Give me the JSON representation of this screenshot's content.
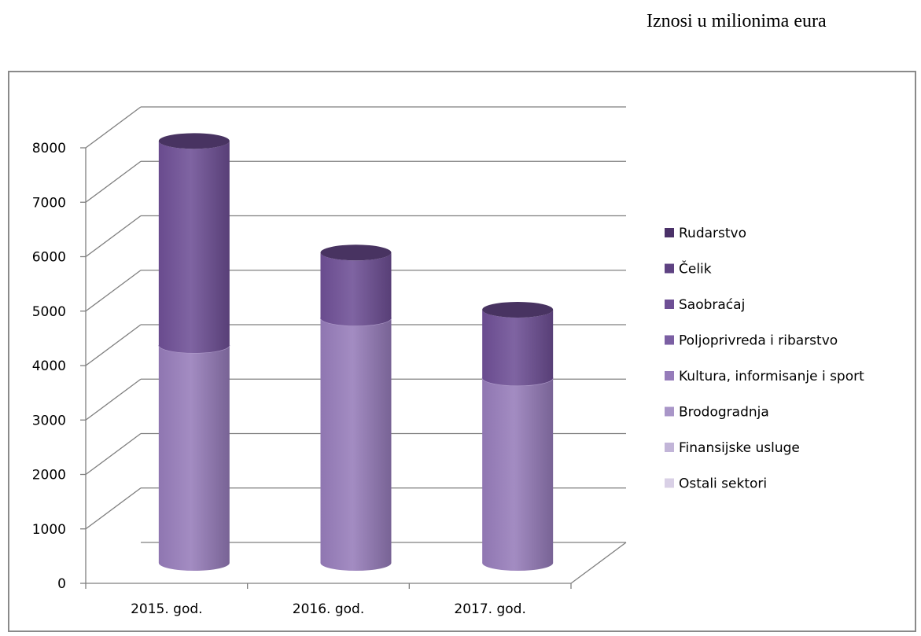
{
  "header": {
    "title": "Iznosi u milionima eura"
  },
  "chart_data": {
    "type": "bar",
    "style": "3d-stacked-cylinder",
    "categories": [
      "2015. god.",
      "2016. god.",
      "2017. god."
    ],
    "series": [
      {
        "name": "Ostali sektori",
        "color": "#d9d0e6",
        "values": [
          0,
          0,
          0
        ]
      },
      {
        "name": "Finansijske usluge",
        "color": "#c2b5d8",
        "values": [
          0,
          0,
          0
        ]
      },
      {
        "name": "Brodogradnja",
        "color": "#a996c8",
        "values": [
          0,
          0,
          0
        ]
      },
      {
        "name": "Kultura, informisanje i sport",
        "color": "#967cba",
        "values": [
          4000,
          4500,
          3400
        ]
      },
      {
        "name": "Poljoprivreda i ribarstvo",
        "color": "#7b5fa3",
        "values": [
          0,
          0,
          0
        ]
      },
      {
        "name": "Saobraćaj",
        "color": "#6e4f95",
        "values": [
          3750,
          1200,
          1250
        ]
      },
      {
        "name": "Čelik",
        "color": "#5e4282",
        "values": [
          0,
          0,
          0
        ]
      },
      {
        "name": "Rudarstvo",
        "color": "#4a3168",
        "values": [
          0,
          0,
          0
        ]
      }
    ],
    "legend_order": [
      "Rudarstvo",
      "Čelik",
      "Saobraćaj",
      "Poljoprivreda i ribarstvo",
      "Kultura, informisanje i sport",
      "Brodogradnja",
      "Finansijske usluge",
      "Ostali sektori"
    ],
    "y_ticks": [
      "0",
      "1000",
      "2000",
      "3000",
      "4000",
      "5000",
      "6000",
      "7000",
      "8000"
    ],
    "ylim": [
      0,
      8000
    ],
    "grid": true,
    "legend_position": "right"
  }
}
